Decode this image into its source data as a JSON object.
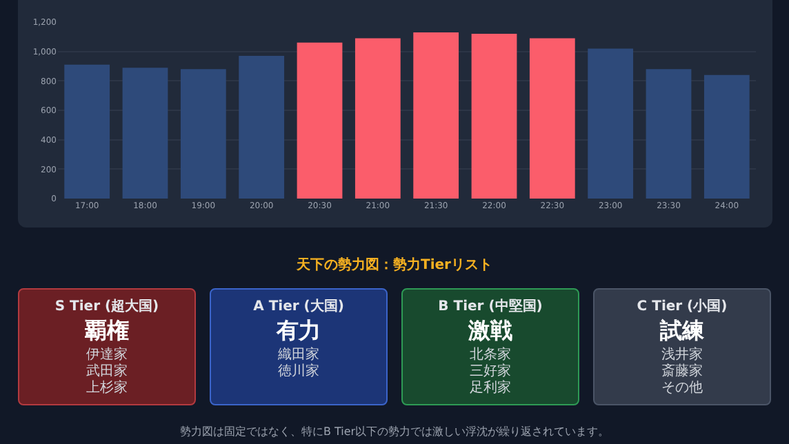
{
  "chart_data": [
    {
      "type": "bar",
      "categories": [
        "17:00",
        "18:00",
        "19:00",
        "20:00",
        "20:30",
        "21:00",
        "21:30",
        "22:00",
        "22:30",
        "23:00",
        "23:30",
        "24:00"
      ],
      "values": [
        910,
        890,
        880,
        970,
        1060,
        1090,
        1130,
        1120,
        1090,
        1020,
        880,
        840
      ],
      "colors": [
        "#2e4a7a",
        "#2e4a7a",
        "#2e4a7a",
        "#2e4a7a",
        "#fb5d6b",
        "#fb5d6b",
        "#fb5d6b",
        "#fb5d6b",
        "#fb5d6b",
        "#2e4a7a",
        "#2e4a7a",
        "#2e4a7a"
      ],
      "ylim": [
        0,
        1200
      ],
      "yticks": [
        0,
        200,
        400,
        600,
        800,
        {
          "value": 1000,
          "label": "1,000"
        },
        {
          "value": 1200,
          "label": "1,200"
        }
      ],
      "grid": "y"
    },
    {
      "type": "other",
      "title": "天下の勢力図：勢力Tierリスト",
      "annotations": [
        "勢力図は固定ではなく、特にB Tier以下の勢力では激しい浮沈が繰り返されています。"
      ]
    },
    {
      "type": "other",
      "title": "S Tier (超大国)",
      "subtitle": "覇権",
      "annotations": [
        "伊達家",
        "武田家",
        "上杉家"
      ]
    },
    {
      "type": "other",
      "title": "A Tier (大国)",
      "subtitle": "有力",
      "annotations": [
        "織田家",
        "徳川家"
      ]
    },
    {
      "type": "other",
      "title": "B Tier (中堅国)",
      "subtitle": "激戦",
      "annotations": [
        "北条家",
        "三好家",
        "足利家"
      ]
    },
    {
      "type": "other",
      "title": "C Tier (小国)",
      "subtitle": "試練",
      "annotations": [
        "浅井家",
        "斎藤家",
        "その他"
      ]
    }
  ]
}
